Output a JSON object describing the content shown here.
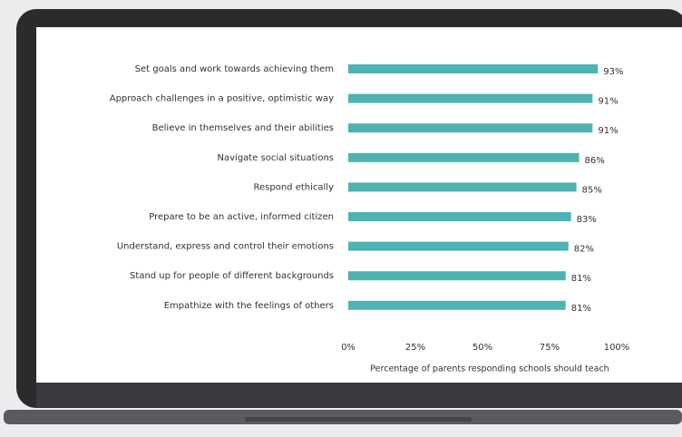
{
  "chart_data": {
    "type": "bar",
    "orientation": "horizontal",
    "categories": [
      "Set goals and work towards achieving them",
      "Approach challenges in a positive, optimistic way",
      "Believe in themselves and their abilities",
      "Navigate social situations",
      "Respond ethically",
      "Prepare to be an active, informed citizen",
      "Understand, express and control their emotions",
      "Stand up for people of different backgrounds",
      "Empathize with the feelings of others"
    ],
    "values": [
      93,
      91,
      91,
      86,
      85,
      83,
      82,
      81,
      81
    ],
    "value_labels": [
      "93%",
      "91%",
      "91%",
      "86%",
      "85%",
      "83%",
      "82%",
      "81%",
      "81%"
    ],
    "color": "#4eb3b2",
    "xlim": [
      0,
      100
    ],
    "xticks": [
      {
        "value": 0,
        "label": "0%"
      },
      {
        "value": 25,
        "label": "25%"
      },
      {
        "value": 50,
        "label": "50%"
      },
      {
        "value": 75,
        "label": "75%"
      },
      {
        "value": 100,
        "label": "100%"
      }
    ],
    "xlabel": "Percentage of parents responding schools should teach",
    "grid": false
  }
}
